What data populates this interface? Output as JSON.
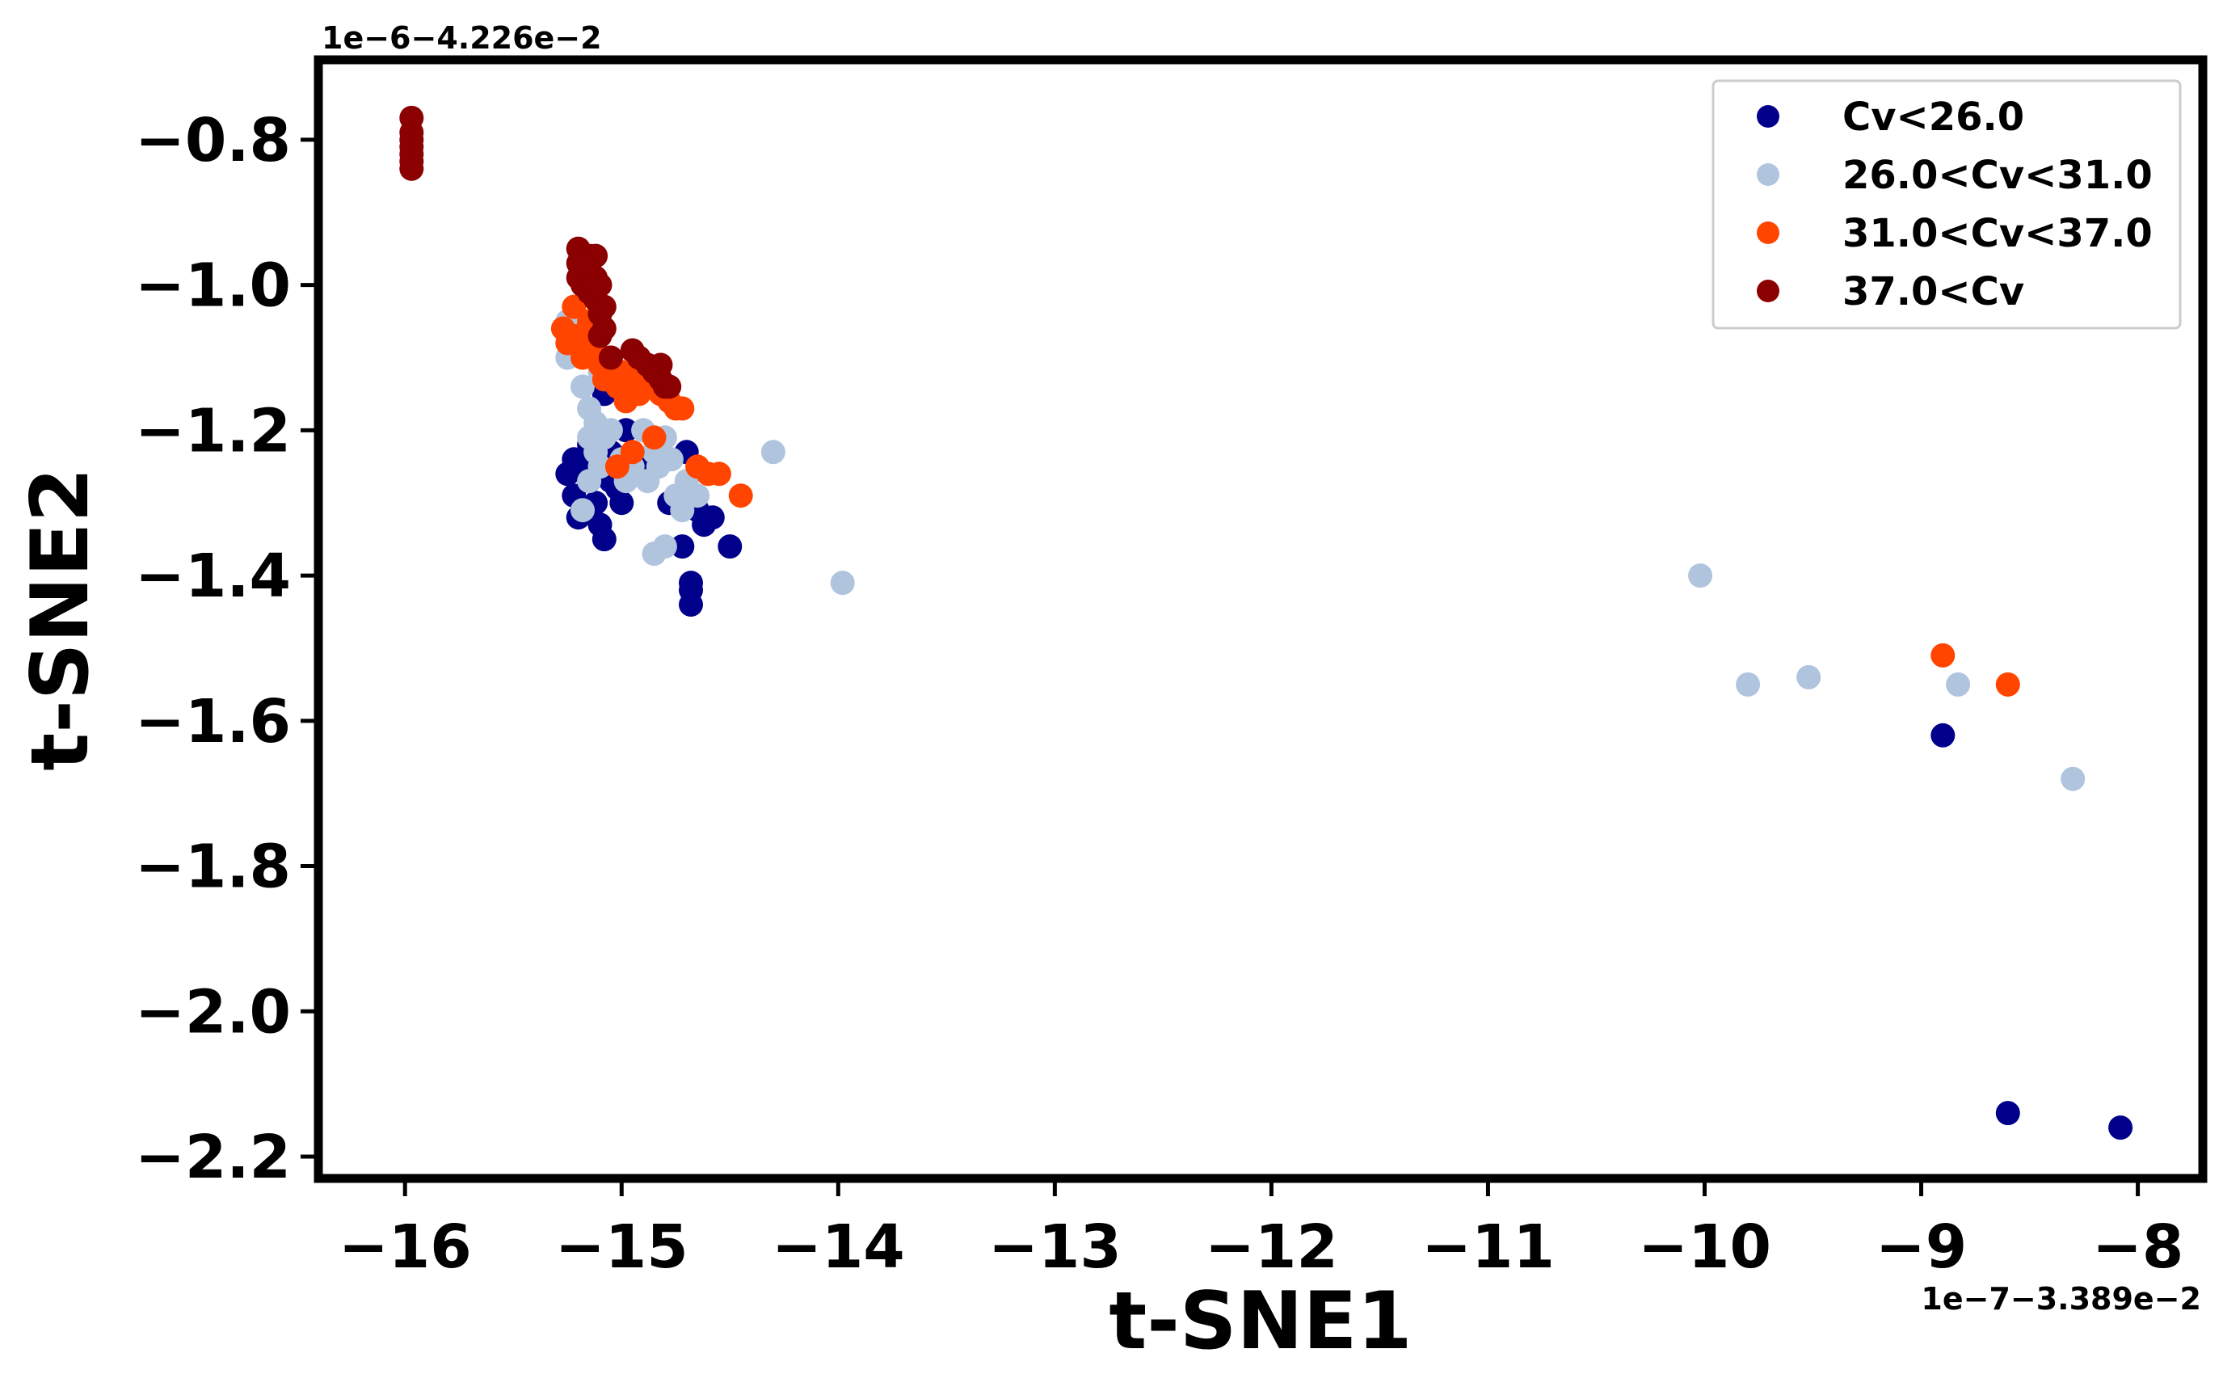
{
  "chart_data": {
    "type": "scatter",
    "title": "",
    "xlabel": "t-SNE1",
    "ylabel": "t-SNE2",
    "x_offset_label": "1e−7−3.389e−2",
    "y_offset_label": "1e−6−4.226e−2",
    "xlim": [
      -16.4,
      -7.7
    ],
    "ylim": [
      -2.23,
      -0.69
    ],
    "x_ticks": [
      -16,
      -15,
      -14,
      -13,
      -12,
      -11,
      -10,
      -9,
      -8
    ],
    "x_tick_labels": [
      "−16",
      "−15",
      "−14",
      "−13",
      "−12",
      "−11",
      "−10",
      "−9",
      "−8"
    ],
    "y_ticks": [
      -0.8,
      -1.0,
      -1.2,
      -1.4,
      -1.6,
      -1.8,
      -2.0,
      -2.2
    ],
    "y_tick_labels": [
      "−0.8",
      "−1.0",
      "−1.2",
      "−1.4",
      "−1.6",
      "−1.8",
      "−2.0",
      "−2.2"
    ],
    "grid": false,
    "legend_position": "top-right",
    "series": [
      {
        "name": "Cv<26.0",
        "color": "#00008b",
        "points": [
          [
            -15.25,
            -1.26
          ],
          [
            -15.22,
            -1.29
          ],
          [
            -15.2,
            -1.32
          ],
          [
            -15.18,
            -1.25
          ],
          [
            -15.15,
            -1.27
          ],
          [
            -15.12,
            -1.3
          ],
          [
            -15.1,
            -1.33
          ],
          [
            -15.08,
            -1.35
          ],
          [
            -15.05,
            -1.23
          ],
          [
            -15.02,
            -1.28
          ],
          [
            -15.0,
            -1.3
          ],
          [
            -14.98,
            -1.2
          ],
          [
            -15.08,
            -1.15
          ],
          [
            -15.15,
            -1.22
          ],
          [
            -14.88,
            -1.26
          ],
          [
            -14.85,
            -1.24
          ],
          [
            -14.78,
            -1.3
          ],
          [
            -14.72,
            -1.36
          ],
          [
            -14.7,
            -1.23
          ],
          [
            -14.68,
            -1.41
          ],
          [
            -14.68,
            -1.42
          ],
          [
            -14.68,
            -1.44
          ],
          [
            -14.65,
            -1.31
          ],
          [
            -14.62,
            -1.33
          ],
          [
            -14.58,
            -1.32
          ],
          [
            -14.5,
            -1.36
          ],
          [
            -14.75,
            -1.3
          ],
          [
            -15.22,
            -1.24
          ],
          [
            -15.12,
            -1.26
          ],
          [
            -15.05,
            -1.27
          ],
          [
            -8.9,
            -1.62
          ],
          [
            -8.6,
            -2.14
          ],
          [
            -8.08,
            -2.16
          ]
        ]
      },
      {
        "name": "26.0<Cv<31.0",
        "color": "#b0c4de",
        "points": [
          [
            -15.25,
            -1.05
          ],
          [
            -15.25,
            -1.1
          ],
          [
            -15.2,
            -1.08
          ],
          [
            -15.18,
            -1.14
          ],
          [
            -15.15,
            -1.17
          ],
          [
            -15.12,
            -1.19
          ],
          [
            -15.15,
            -1.21
          ],
          [
            -15.12,
            -1.23
          ],
          [
            -15.1,
            -1.25
          ],
          [
            -15.15,
            -1.27
          ],
          [
            -15.18,
            -1.31
          ],
          [
            -15.08,
            -1.21
          ],
          [
            -15.05,
            -1.2
          ],
          [
            -15.0,
            -1.24
          ],
          [
            -14.98,
            -1.27
          ],
          [
            -14.95,
            -1.25
          ],
          [
            -14.9,
            -1.2
          ],
          [
            -14.88,
            -1.27
          ],
          [
            -14.85,
            -1.23
          ],
          [
            -14.83,
            -1.25
          ],
          [
            -14.8,
            -1.21
          ],
          [
            -14.77,
            -1.24
          ],
          [
            -14.75,
            -1.29
          ],
          [
            -14.72,
            -1.31
          ],
          [
            -14.7,
            -1.27
          ],
          [
            -14.65,
            -1.29
          ],
          [
            -14.8,
            -1.36
          ],
          [
            -14.85,
            -1.37
          ],
          [
            -15.1,
            -1.12
          ],
          [
            -15.05,
            -1.13
          ],
          [
            -14.3,
            -1.23
          ],
          [
            -13.98,
            -1.41
          ],
          [
            -10.02,
            -1.4
          ],
          [
            -9.8,
            -1.55
          ],
          [
            -9.52,
            -1.54
          ],
          [
            -8.83,
            -1.55
          ],
          [
            -8.3,
            -1.68
          ]
        ]
      },
      {
        "name": "31.0<Cv<37.0",
        "color": "#ff4500",
        "points": [
          [
            -15.27,
            -1.06
          ],
          [
            -15.25,
            -1.08
          ],
          [
            -15.22,
            -1.03
          ],
          [
            -15.2,
            -1.07
          ],
          [
            -15.18,
            -1.1
          ],
          [
            -15.15,
            -1.05
          ],
          [
            -15.12,
            -1.09
          ],
          [
            -15.1,
            -1.11
          ],
          [
            -15.08,
            -1.13
          ],
          [
            -15.05,
            -1.1
          ],
          [
            -15.02,
            -1.14
          ],
          [
            -15.0,
            -1.12
          ],
          [
            -14.98,
            -1.16
          ],
          [
            -14.95,
            -1.13
          ],
          [
            -14.92,
            -1.15
          ],
          [
            -14.9,
            -1.11
          ],
          [
            -14.85,
            -1.14
          ],
          [
            -14.82,
            -1.15
          ],
          [
            -14.78,
            -1.16
          ],
          [
            -14.75,
            -1.17
          ],
          [
            -14.72,
            -1.17
          ],
          [
            -14.85,
            -1.21
          ],
          [
            -14.95,
            -1.23
          ],
          [
            -15.02,
            -1.25
          ],
          [
            -14.65,
            -1.25
          ],
          [
            -14.6,
            -1.26
          ],
          [
            -14.55,
            -1.26
          ],
          [
            -14.45,
            -1.29
          ],
          [
            -8.9,
            -1.51
          ],
          [
            -8.6,
            -1.55
          ]
        ]
      },
      {
        "name": "37.0<Cv",
        "color": "#8b0000",
        "points": [
          [
            -15.97,
            -0.77
          ],
          [
            -15.97,
            -0.79
          ],
          [
            -15.97,
            -0.8
          ],
          [
            -15.97,
            -0.81
          ],
          [
            -15.97,
            -0.82
          ],
          [
            -15.97,
            -0.83
          ],
          [
            -15.97,
            -0.84
          ],
          [
            -15.2,
            -0.95
          ],
          [
            -15.2,
            -0.97
          ],
          [
            -15.2,
            -0.99
          ],
          [
            -15.18,
            -1.0
          ],
          [
            -15.15,
            -0.96
          ],
          [
            -15.15,
            -0.98
          ],
          [
            -15.15,
            -1.01
          ],
          [
            -15.12,
            -0.96
          ],
          [
            -15.12,
            -0.99
          ],
          [
            -15.12,
            -1.02
          ],
          [
            -15.1,
            -1.04
          ],
          [
            -15.1,
            -1.07
          ],
          [
            -15.08,
            -1.06
          ],
          [
            -15.05,
            -1.1
          ],
          [
            -14.95,
            -1.09
          ],
          [
            -14.92,
            -1.1
          ],
          [
            -14.88,
            -1.11
          ],
          [
            -14.85,
            -1.12
          ],
          [
            -14.82,
            -1.11
          ],
          [
            -14.82,
            -1.13
          ],
          [
            -14.8,
            -1.14
          ],
          [
            -14.78,
            -1.14
          ],
          [
            -15.18,
            -0.97
          ],
          [
            -15.1,
            -1.0
          ],
          [
            -15.08,
            -1.03
          ]
        ]
      }
    ]
  }
}
